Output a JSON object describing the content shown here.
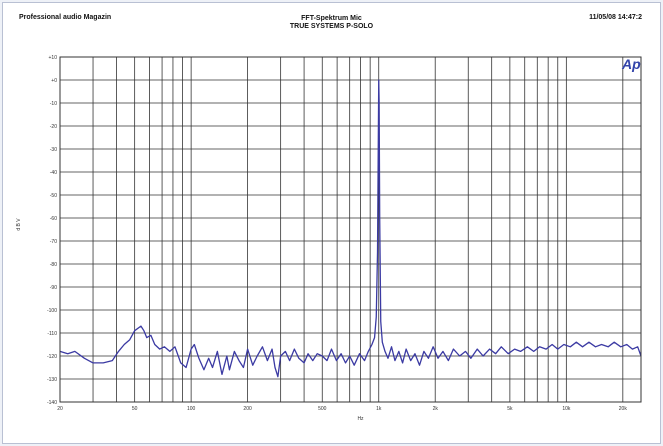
{
  "header": {
    "left": "Professional audio Magazin",
    "center_line1": "FFT-Spektrum Mic",
    "center_line2": "TRUE SYSTEMS P-SOLO",
    "right": "11/05/08 14:47:2"
  },
  "logo_text": "Ap",
  "colors": {
    "trace": "#3b3aa3",
    "grid": "#333333",
    "background": "#ffffff",
    "logo": "#3344aa"
  },
  "chart_data": {
    "type": "line",
    "xscale": "log",
    "xlim": [
      20,
      25000
    ],
    "ylim": [
      -140,
      10
    ],
    "xlabel": "Hz",
    "ylabel": "d B V",
    "grid": true,
    "x_ticks": [
      {
        "v": 20,
        "label": "20"
      },
      {
        "v": 50,
        "label": "50"
      },
      {
        "v": 100,
        "label": "100"
      },
      {
        "v": 200,
        "label": "200"
      },
      {
        "v": 500,
        "label": "500"
      },
      {
        "v": 1000,
        "label": "1k"
      },
      {
        "v": 2000,
        "label": "2k"
      },
      {
        "v": 5000,
        "label": "5k"
      },
      {
        "v": 10000,
        "label": "10k"
      },
      {
        "v": 20000,
        "label": "20k"
      }
    ],
    "y_ticks": [
      {
        "v": 10,
        "label": "+10"
      },
      {
        "v": 0,
        "label": "+0"
      },
      {
        "v": -10,
        "label": "-10"
      },
      {
        "v": -20,
        "label": "-20"
      },
      {
        "v": -30,
        "label": "-30"
      },
      {
        "v": -40,
        "label": "-40"
      },
      {
        "v": -50,
        "label": "-50"
      },
      {
        "v": -60,
        "label": "-60"
      },
      {
        "v": -70,
        "label": "-70"
      },
      {
        "v": -80,
        "label": "-80"
      },
      {
        "v": -90,
        "label": "-90"
      },
      {
        "v": -100,
        "label": "-100"
      },
      {
        "v": -110,
        "label": "-110"
      },
      {
        "v": -120,
        "label": "-120"
      },
      {
        "v": -130,
        "label": "-130"
      },
      {
        "v": -140,
        "label": "-140"
      }
    ],
    "series": [
      {
        "points": [
          [
            20,
            -118
          ],
          [
            22,
            -119
          ],
          [
            24,
            -118
          ],
          [
            27,
            -121
          ],
          [
            30,
            -123
          ],
          [
            34,
            -123
          ],
          [
            38,
            -122
          ],
          [
            41,
            -118
          ],
          [
            44,
            -115
          ],
          [
            47,
            -113
          ],
          [
            50,
            -109
          ],
          [
            54,
            -107
          ],
          [
            56,
            -109
          ],
          [
            58,
            -112
          ],
          [
            61,
            -111
          ],
          [
            64,
            -115
          ],
          [
            68,
            -117
          ],
          [
            72,
            -116
          ],
          [
            77,
            -118
          ],
          [
            82,
            -116
          ],
          [
            88,
            -123
          ],
          [
            94,
            -125
          ],
          [
            100,
            -117
          ],
          [
            104,
            -115
          ],
          [
            110,
            -121
          ],
          [
            117,
            -126
          ],
          [
            124,
            -121
          ],
          [
            130,
            -125
          ],
          [
            138,
            -118
          ],
          [
            146,
            -128
          ],
          [
            155,
            -120
          ],
          [
            160,
            -126
          ],
          [
            170,
            -118
          ],
          [
            180,
            -122
          ],
          [
            190,
            -125
          ],
          [
            200,
            -117
          ],
          [
            213,
            -124
          ],
          [
            225,
            -120
          ],
          [
            240,
            -116
          ],
          [
            255,
            -122
          ],
          [
            270,
            -117
          ],
          [
            280,
            -125
          ],
          [
            290,
            -129
          ],
          [
            300,
            -120
          ],
          [
            318,
            -118
          ],
          [
            335,
            -122
          ],
          [
            355,
            -117
          ],
          [
            375,
            -121
          ],
          [
            400,
            -123
          ],
          [
            420,
            -119
          ],
          [
            445,
            -122
          ],
          [
            470,
            -119
          ],
          [
            500,
            -120
          ],
          [
            530,
            -122
          ],
          [
            560,
            -117
          ],
          [
            595,
            -122
          ],
          [
            630,
            -119
          ],
          [
            665,
            -123
          ],
          [
            700,
            -120
          ],
          [
            740,
            -124
          ],
          [
            790,
            -119
          ],
          [
            840,
            -122
          ],
          [
            880,
            -118
          ],
          [
            920,
            -115
          ],
          [
            950,
            -112
          ],
          [
            970,
            -103
          ],
          [
            985,
            -75
          ],
          [
            995,
            -25
          ],
          [
            1000,
            0
          ],
          [
            1005,
            -10
          ],
          [
            1012,
            -60
          ],
          [
            1025,
            -105
          ],
          [
            1045,
            -114
          ],
          [
            1080,
            -118
          ],
          [
            1120,
            -121
          ],
          [
            1170,
            -116
          ],
          [
            1220,
            -122
          ],
          [
            1280,
            -118
          ],
          [
            1340,
            -123
          ],
          [
            1400,
            -117
          ],
          [
            1480,
            -122
          ],
          [
            1560,
            -119
          ],
          [
            1650,
            -124
          ],
          [
            1740,
            -118
          ],
          [
            1840,
            -121
          ],
          [
            1950,
            -116
          ],
          [
            2070,
            -121
          ],
          [
            2200,
            -118
          ],
          [
            2350,
            -122
          ],
          [
            2500,
            -117
          ],
          [
            2700,
            -120
          ],
          [
            2900,
            -118
          ],
          [
            3100,
            -121
          ],
          [
            3350,
            -117
          ],
          [
            3600,
            -120
          ],
          [
            3900,
            -117
          ],
          [
            4200,
            -119
          ],
          [
            4500,
            -116
          ],
          [
            4900,
            -119
          ],
          [
            5300,
            -117
          ],
          [
            5700,
            -118
          ],
          [
            6200,
            -116
          ],
          [
            6700,
            -118
          ],
          [
            7200,
            -116
          ],
          [
            7800,
            -117
          ],
          [
            8400,
            -115
          ],
          [
            9000,
            -117
          ],
          [
            9700,
            -115
          ],
          [
            10500,
            -116
          ],
          [
            11300,
            -114
          ],
          [
            12200,
            -116
          ],
          [
            13200,
            -114
          ],
          [
            14300,
            -116
          ],
          [
            15400,
            -115
          ],
          [
            16700,
            -116
          ],
          [
            18000,
            -114
          ],
          [
            19500,
            -116
          ],
          [
            21000,
            -115
          ],
          [
            22500,
            -117
          ],
          [
            24000,
            -116
          ],
          [
            25000,
            -120
          ]
        ]
      }
    ]
  }
}
